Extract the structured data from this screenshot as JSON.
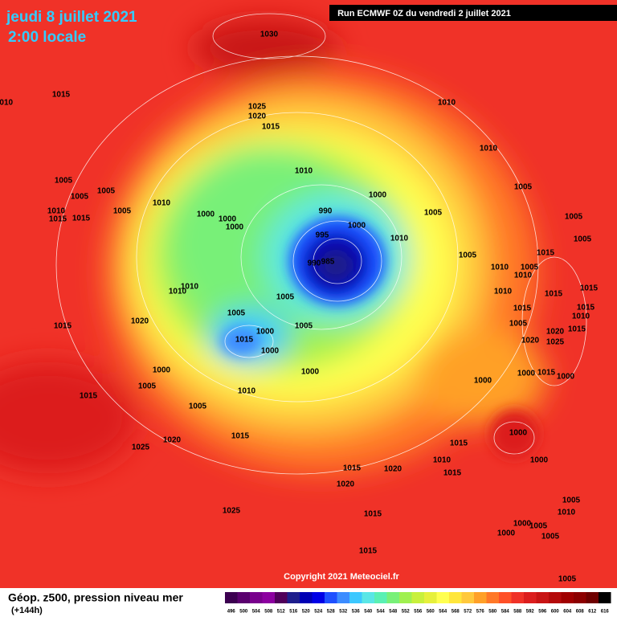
{
  "header": {
    "date": "jeudi 8 juillet 2021",
    "time": "2:00 locale",
    "run": "Run ECMWF 0Z du vendredi 2 juillet 2021"
  },
  "copyright": "Copyright 2021 Meteociel.fr",
  "legend": {
    "title": "Géop. z500, pression niveau mer",
    "lead": "(+144h)",
    "labels": [
      496,
      500,
      504,
      508,
      512,
      516,
      520,
      524,
      528,
      532,
      536,
      540,
      544,
      548,
      552,
      556,
      560,
      564,
      568,
      572,
      576,
      580,
      584,
      588,
      592,
      596,
      600,
      604,
      608,
      612,
      616
    ],
    "colors": [
      "#3c0050",
      "#5a006e",
      "#78008c",
      "#8c00a0",
      "#50005a",
      "#1e1e8c",
      "#0000b4",
      "#0000e6",
      "#1e50ff",
      "#3c8cff",
      "#3cc8ff",
      "#5ae6e6",
      "#5af0b4",
      "#78f078",
      "#a0f050",
      "#c8f03c",
      "#e6f03c",
      "#ffff50",
      "#ffe63c",
      "#ffc83c",
      "#ffa028",
      "#ff7828",
      "#ff5028",
      "#f03228",
      "#dc1e1e",
      "#c81414",
      "#b40a0a",
      "#a00000",
      "#8c0000",
      "#6e0000",
      "#000000"
    ]
  },
  "isobar_labels": [
    1030,
    1015,
    1010,
    1025,
    1020,
    1015,
    1010,
    1010,
    1010,
    1005,
    1005,
    1005,
    1010,
    1005,
    1010,
    1015,
    1015,
    1000,
    1000,
    1000,
    1000,
    990,
    1000,
    995,
    1010,
    1005,
    1005,
    1005,
    1005,
    1005,
    990,
    985,
    1010,
    1015,
    1005,
    1010,
    1015,
    1010,
    1015,
    1010,
    1010,
    1005,
    1005,
    1005,
    1000,
    1015,
    1000,
    1020,
    1015,
    1015,
    1015,
    1010,
    1005,
    1015,
    1020,
    1025,
    1020,
    1000,
    1000,
    1000,
    1000,
    1015,
    1000,
    1005,
    1010,
    1015,
    1005,
    1015,
    1020,
    1025,
    1000,
    1015,
    1010,
    1000,
    1015,
    1020,
    1015,
    1020,
    1025,
    1015,
    1005,
    1010,
    1000,
    1005,
    1005,
    1000,
    1005,
    1015
  ]
}
